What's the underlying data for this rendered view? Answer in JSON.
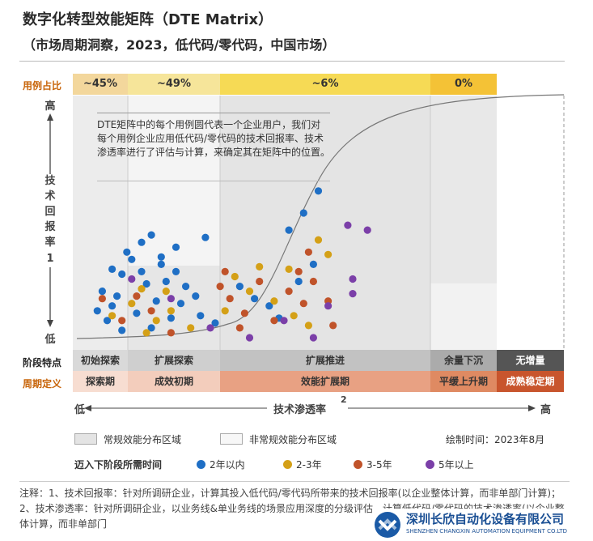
{
  "title": "数字化转型效能矩阵（DTE Matrix）",
  "subtitle": "（市场周期洞察，2023，低代码/零代码，中国市场）",
  "labels": {
    "case_share": "用例占比",
    "stage_feature": "阶段特点",
    "period_def": "周期定义",
    "y_axis": [
      "技",
      "术",
      "回",
      "报",
      "率"
    ],
    "y_axis_sup": "1",
    "y_high": "高",
    "y_low": "低",
    "x_axis": "技术渗透率",
    "x_axis_sup": "2",
    "x_low": "低",
    "x_high": "高"
  },
  "note": "DTE矩阵中的每个用例圆代表一个企业用户，我们对每个用例企业应用低代码/零代码的技术回报率、技术渗透率进行了评估与计算，来确定其在矩阵中的位置。",
  "colors": {
    "year_1_2": "#1f6fc5",
    "year_2_3": "#d4a017",
    "year_3_5": "#c0532a",
    "year_5_plus": "#7b3fa8"
  },
  "chart_data": {
    "type": "scatter",
    "title": "数字化转型效能矩阵（DTE Matrix）",
    "xlabel": "技术渗透率",
    "ylabel": "技术回报率",
    "xlim": [
      0,
      100
    ],
    "ylim": [
      0,
      100
    ],
    "segments": [
      {
        "share": "~45%",
        "stage": "初始探索",
        "period": "探索期"
      },
      {
        "share": "~49%",
        "stage": "扩展探索",
        "period": "成效初期"
      },
      {
        "share": "~6%",
        "stage": "扩展推进",
        "period": "效能扩展期"
      },
      {
        "share": "0%",
        "stage": "余量下沉",
        "period": "平缓上升期"
      },
      {
        "share": "",
        "stage": "无增量",
        "period": "成熟稳定期"
      }
    ],
    "series": [
      {
        "name": "2年以内",
        "points": [
          [
            6,
            20
          ],
          [
            8,
            14
          ],
          [
            10,
            27
          ],
          [
            12,
            33
          ],
          [
            14,
            40
          ],
          [
            16,
            43
          ],
          [
            18,
            31
          ],
          [
            15,
            23
          ],
          [
            7,
            8
          ],
          [
            10,
            4
          ],
          [
            13,
            11
          ],
          [
            9,
            18
          ],
          [
            17,
            16
          ],
          [
            19,
            24
          ],
          [
            21,
            38
          ],
          [
            11,
            36
          ],
          [
            20,
            9
          ],
          [
            5,
            12
          ],
          [
            16,
            5
          ],
          [
            22,
            15
          ],
          [
            14,
            28
          ],
          [
            18,
            34
          ],
          [
            8,
            29
          ],
          [
            23,
            22
          ],
          [
            25,
            18
          ],
          [
            27,
            42
          ],
          [
            26,
            10
          ],
          [
            29,
            7
          ],
          [
            21,
            28
          ],
          [
            34,
            22
          ],
          [
            37,
            17
          ],
          [
            40,
            14
          ],
          [
            42,
            9
          ],
          [
            46,
            24
          ],
          [
            44,
            45
          ],
          [
            47,
            52
          ],
          [
            50,
            61
          ],
          [
            49,
            31
          ]
        ]
      },
      {
        "name": "2-3年",
        "points": [
          [
            12,
            15
          ],
          [
            8,
            10
          ],
          [
            15,
            3
          ],
          [
            20,
            12
          ],
          [
            14,
            21
          ],
          [
            19,
            20
          ],
          [
            17,
            8
          ],
          [
            24,
            5
          ],
          [
            33,
            26
          ],
          [
            36,
            20
          ],
          [
            31,
            12
          ],
          [
            38,
            30
          ],
          [
            41,
            16
          ],
          [
            45,
            10
          ],
          [
            48,
            6
          ],
          [
            44,
            29
          ],
          [
            52,
            35
          ],
          [
            50,
            41
          ]
        ]
      },
      {
        "name": "3-5年",
        "points": [
          [
            6,
            17
          ],
          [
            10,
            8
          ],
          [
            16,
            12
          ],
          [
            13,
            18
          ],
          [
            20,
            3
          ],
          [
            30,
            22
          ],
          [
            32,
            17
          ],
          [
            35,
            11
          ],
          [
            34,
            5
          ],
          [
            38,
            24
          ],
          [
            41,
            8
          ],
          [
            44,
            20
          ],
          [
            46,
            28
          ],
          [
            48,
            36
          ],
          [
            47,
            15
          ],
          [
            52,
            16
          ],
          [
            31,
            28
          ],
          [
            53,
            6
          ],
          [
            49,
            24
          ]
        ]
      },
      {
        "name": "5年以上",
        "points": [
          [
            12,
            25
          ],
          [
            20,
            17
          ],
          [
            28,
            5
          ],
          [
            36,
            1
          ],
          [
            43,
            8
          ],
          [
            49,
            1
          ],
          [
            52,
            14
          ],
          [
            56,
            47
          ],
          [
            60,
            45
          ],
          [
            57,
            25
          ],
          [
            57,
            19
          ]
        ]
      }
    ]
  },
  "legend": {
    "normal_area": "常规效能分布区域",
    "abnormal_area": "非常规效能分布区域",
    "draw_time": "绘制时间：2023年8月",
    "next_stage_title": "迈入下阶段所需时间",
    "items": [
      "2年以内",
      "2-3年",
      "3-5年",
      "5年以上"
    ]
  },
  "footnote": "注释：1、技术回报率：针对所调研企业，计算其投入低代码/零代码所带来的技术回报率(以企业整体计算，而非单部门计算)；2、技术渗透率：针对所调研企业，以业务线&单业务线的场景应用深度的分级评估，计算低代码/零代码的技术渗透率(以企业整体计算，而非单部门",
  "watermark": {
    "name_cn": "深圳长欣自动化设备有限公司",
    "name_en": "SHENZHEN CHANGXIN AUTOMATION EQUIPMENT CO.LTD"
  }
}
